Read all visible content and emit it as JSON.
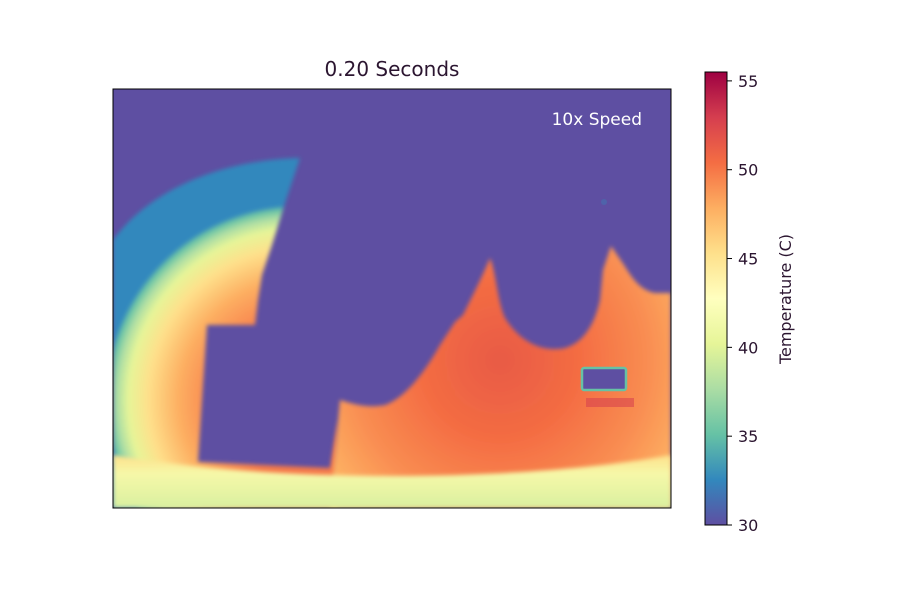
{
  "chart_data": {
    "type": "heatmap",
    "title": "0.20 Seconds",
    "annotation": "10x Speed",
    "colormap": "Spectral_r",
    "background_value": 30,
    "colorbar": {
      "label": "Temperature (C)",
      "vmin": 30,
      "vmax": 55.5,
      "ticks": [
        30,
        35,
        40,
        45,
        50,
        55
      ],
      "tick_labels": [
        "30",
        "35",
        "40",
        "45",
        "50",
        "55"
      ]
    },
    "hot_regions": [
      {
        "name": "left-arc",
        "peak_value": 50
      },
      {
        "name": "right-body",
        "peak_value": 51
      },
      {
        "name": "bottom-band",
        "value": 41
      }
    ],
    "axes": {
      "xticks": [],
      "yticks": [],
      "grid": false
    }
  }
}
